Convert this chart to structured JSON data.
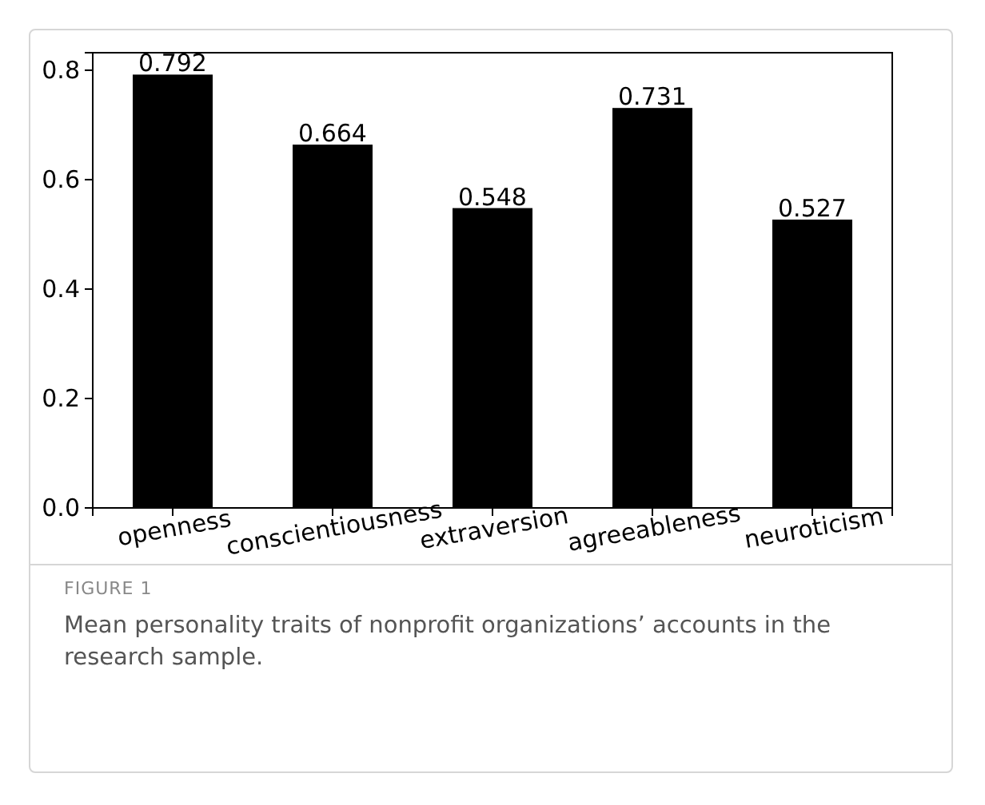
{
  "chart_data": {
    "type": "bar",
    "categories": [
      "openness",
      "conscientiousness",
      "extraversion",
      "agreeableness",
      "neuroticism"
    ],
    "values": [
      0.792,
      0.664,
      0.548,
      0.731,
      0.527
    ],
    "color": "#000000",
    "data_labels": true,
    "ylim": [
      0,
      0.832
    ],
    "yticks": [
      {
        "value": 0,
        "label": "0.0"
      },
      {
        "value": 0.2,
        "label": "0.2"
      },
      {
        "value": 0.4,
        "label": "0.4"
      },
      {
        "value": 0.6,
        "label": "0.6"
      },
      {
        "value": 0.8,
        "label": "0.8"
      }
    ],
    "annotations": [
      "FIGURE 1",
      "Mean personality traits of nonprofit organizations’ accounts in the research sample."
    ]
  }
}
